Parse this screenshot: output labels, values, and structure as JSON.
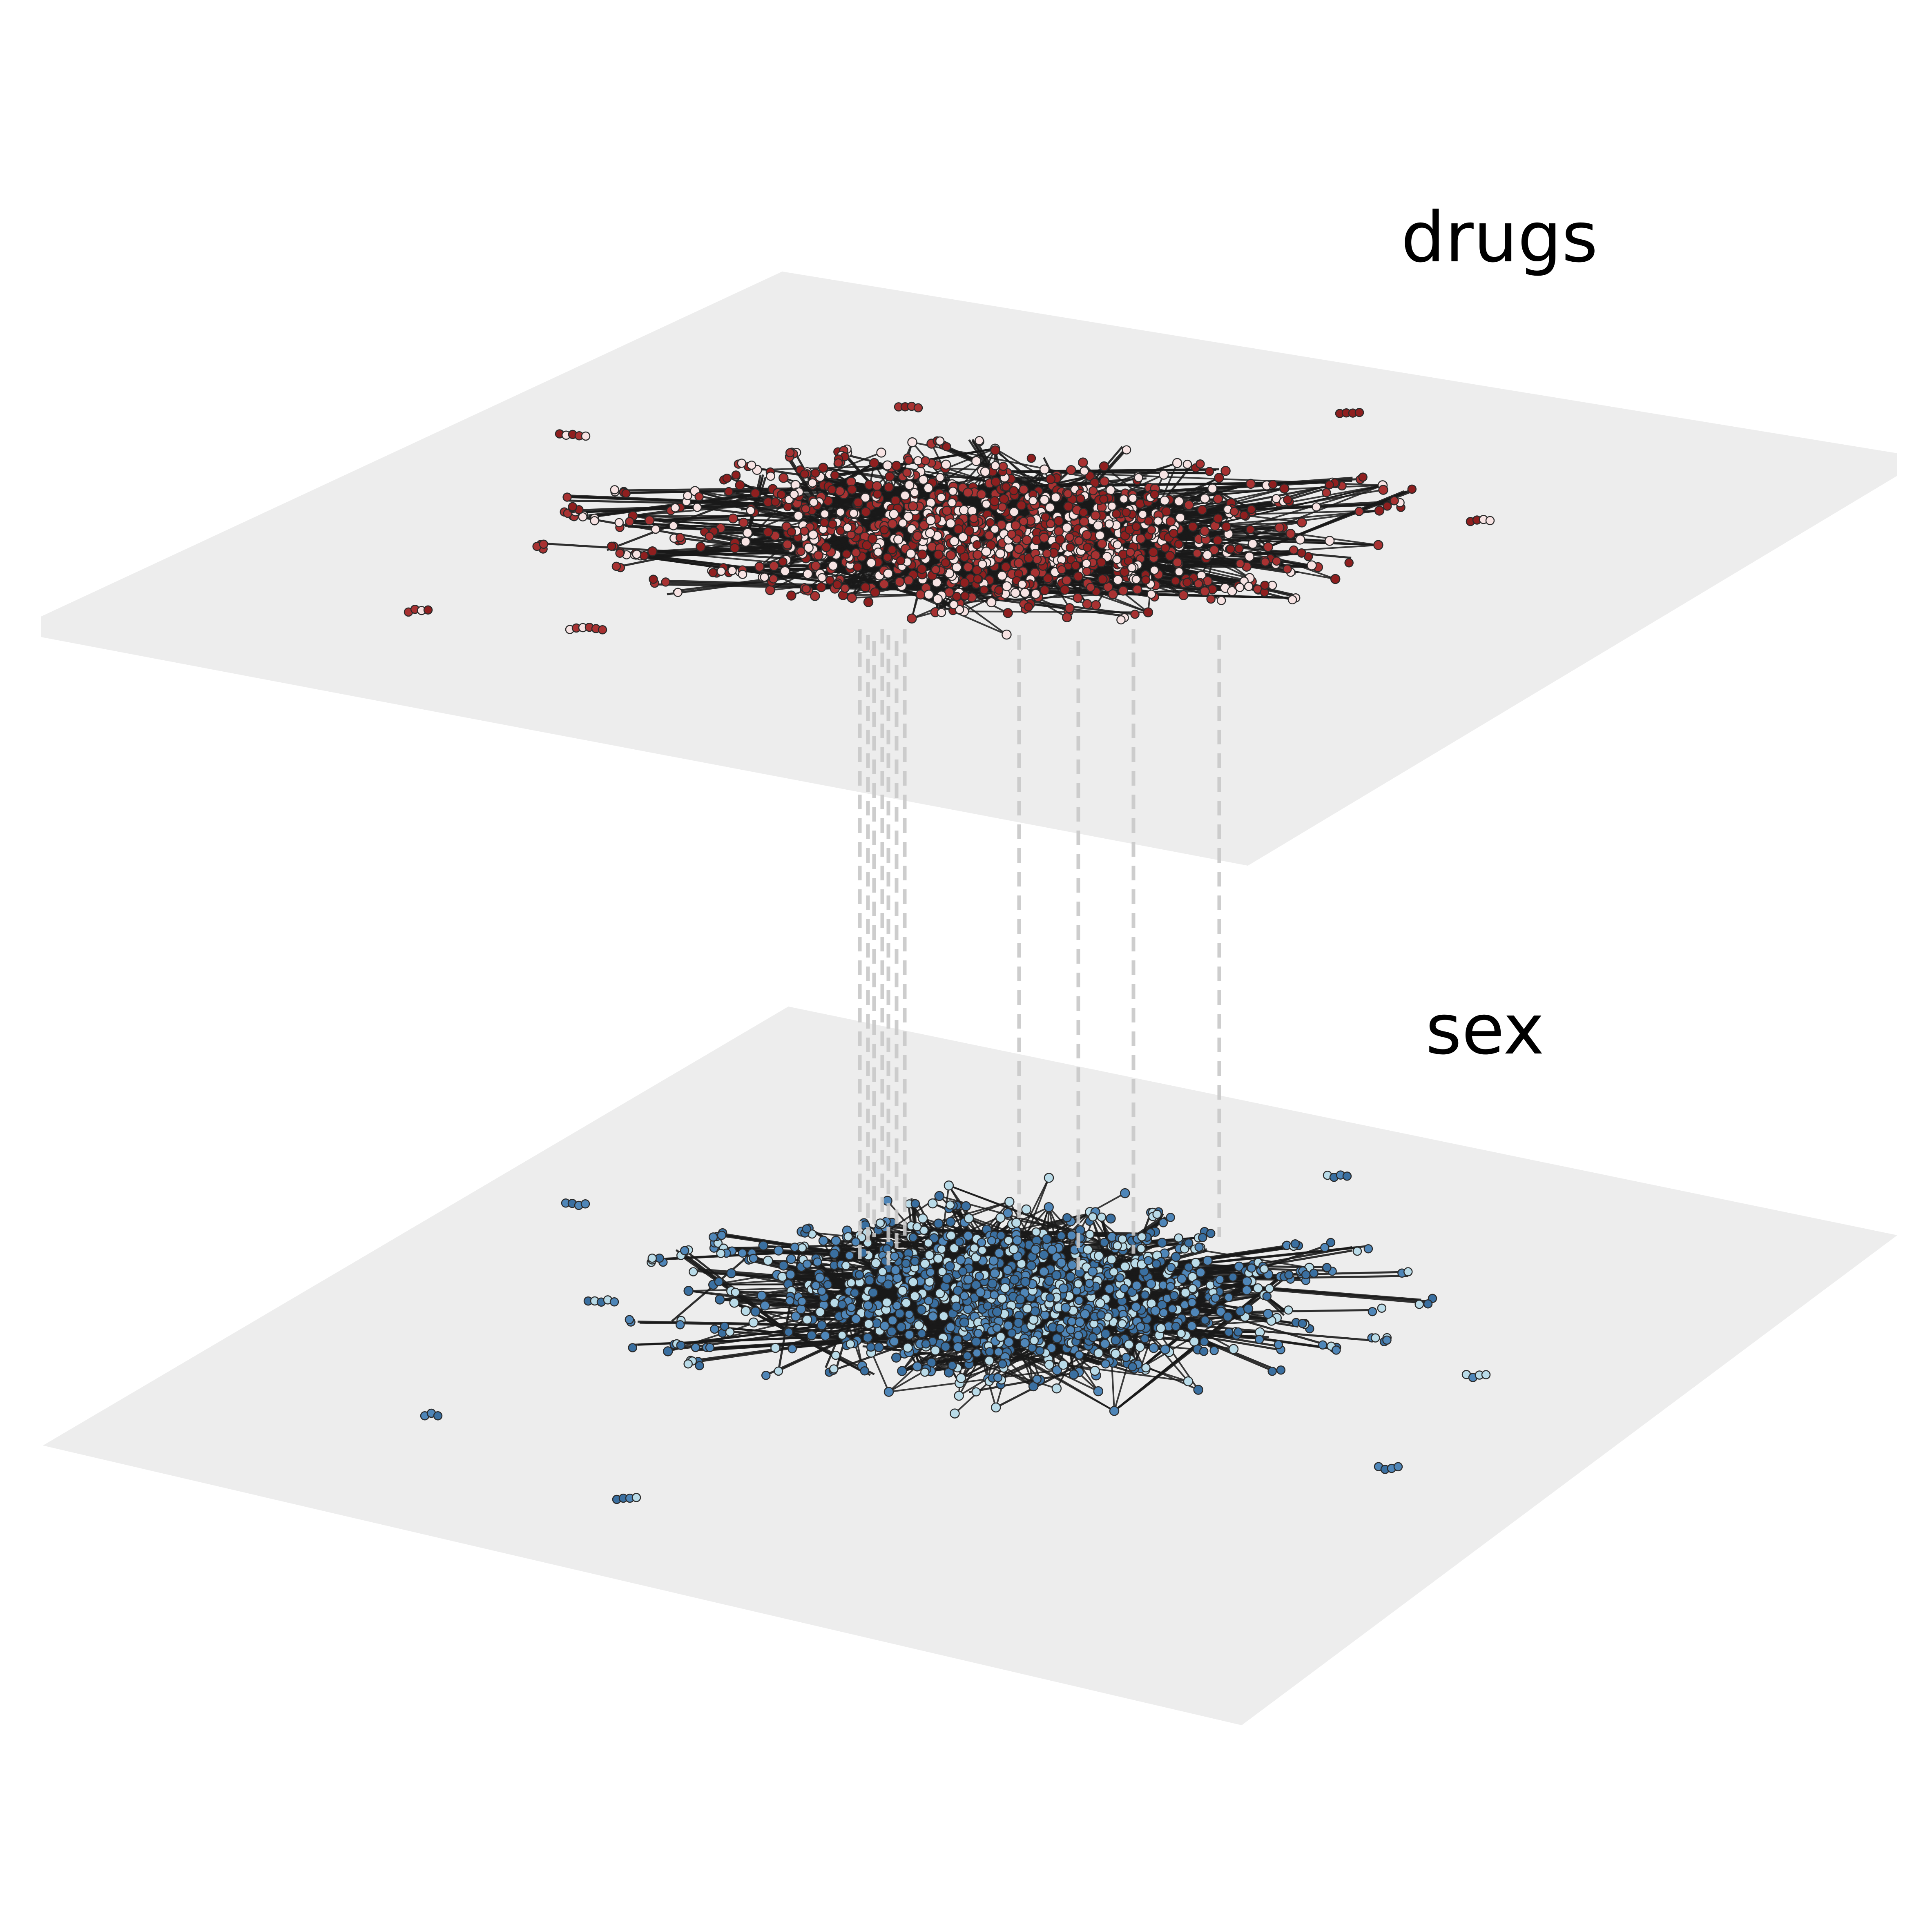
{
  "layers": [
    {
      "id": "drugs",
      "label": "drugs",
      "plane_color": "#ededed",
      "node_colors": [
        "#a83232",
        "#8f1f1f",
        "#f7e3e3"
      ],
      "edge_color": "#1a1a1a"
    },
    {
      "id": "sex",
      "label": "sex",
      "plane_color": "#ededed",
      "node_colors": [
        "#4f86b8",
        "#3a6fa0",
        "#b9dbe8"
      ],
      "edge_color": "#1a1a1a"
    }
  ],
  "interlayer_edge_color": "#c8c8c8",
  "node_outline_color": "#2a2a2a"
}
